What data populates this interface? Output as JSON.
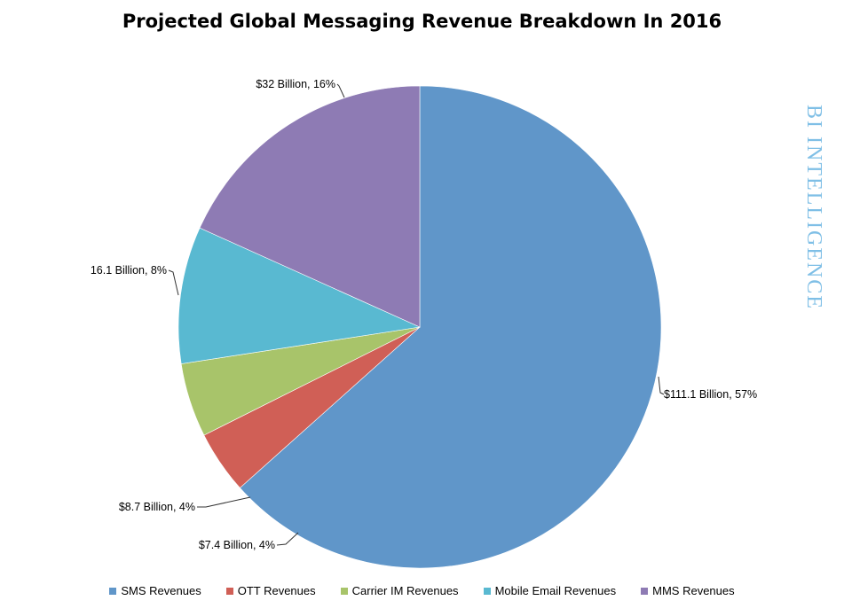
{
  "chart_data": {
    "type": "pie",
    "title": "Projected Global Messaging Revenue Breakdown In 2016",
    "slices": [
      {
        "name": "SMS Revenues",
        "value": 111.1,
        "percent": 57,
        "label": "$111.1 Billion, 57%",
        "color": "#6096c9"
      },
      {
        "name": "OTT Revenues",
        "value": 7.4,
        "percent": 4,
        "label": "$7.4 Billion, 4%",
        "color": "#d05f56"
      },
      {
        "name": "Carrier IM Revenues",
        "value": 8.7,
        "percent": 4,
        "label": "$8.7 Billion, 4%",
        "color": "#a8c46a"
      },
      {
        "name": "Mobile Email Revenues",
        "value": 16.1,
        "percent": 8,
        "label": "16.1 Billion, 8%",
        "color": "#59b9d1"
      },
      {
        "name": "MMS Revenues",
        "value": 32,
        "percent": 16,
        "label": "$32 Billion, 16%",
        "color": "#8e7bb4"
      }
    ],
    "legend_position": "bottom"
  },
  "watermark": {
    "text": "BI INTELLIGENCE",
    "color": "#7fbfe6"
  }
}
